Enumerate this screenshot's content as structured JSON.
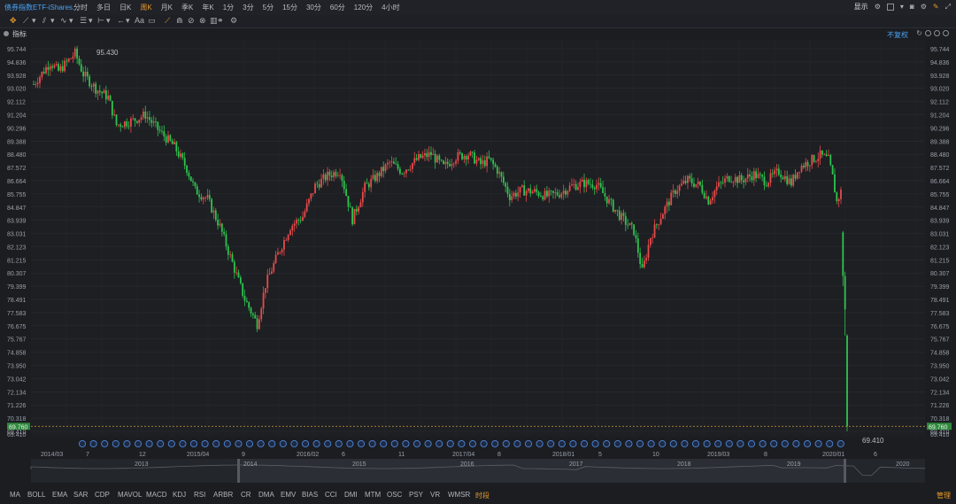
{
  "header": {
    "title": "债券指数ETF-iShares...",
    "periods": [
      "分时",
      "多日",
      "日K",
      "周K",
      "月K",
      "季K",
      "年K",
      "1分",
      "3分",
      "5分",
      "15分",
      "30分",
      "60分",
      "120分",
      "4小时"
    ],
    "active_period": "周K",
    "display_label": "显示"
  },
  "indicator_header": {
    "label": "指标",
    "adjust_label": "不复权"
  },
  "chart_data": {
    "type": "candlestick",
    "y_ticks": [
      95.744,
      94.836,
      93.928,
      93.02,
      92.112,
      91.204,
      90.296,
      89.388,
      88.48,
      87.572,
      86.664,
      85.755,
      84.847,
      83.939,
      83.031,
      82.123,
      81.215,
      80.307,
      79.399,
      78.491,
      77.583,
      76.675,
      75.767,
      74.858,
      73.95,
      73.042,
      72.134,
      71.226,
      70.318,
      69.41
    ],
    "ylim": [
      69.41,
      95.744
    ],
    "current_price": "69.760",
    "high_label": "95.430",
    "low_label": "69.410",
    "up_color": "#e84a4a",
    "down_color": "#2fc44e",
    "x_labels": [
      "2014/03",
      "7",
      "12",
      "2015/04",
      "9",
      "2016/02",
      "6",
      "11",
      "2017/04",
      "8",
      "2018/01",
      "5",
      "10",
      "2019/03",
      "8",
      "2020/01",
      "6"
    ],
    "overview_labels": [
      "2013",
      "2014",
      "2015",
      "2016",
      "2017",
      "2018",
      "2019",
      "2020"
    ],
    "anchors": [
      [
        0,
        93.3
      ],
      [
        8,
        94.8
      ],
      [
        12,
        94.2
      ],
      [
        18,
        95.1
      ],
      [
        20,
        95.43
      ],
      [
        24,
        94.0
      ],
      [
        30,
        93.0
      ],
      [
        36,
        92.4
      ],
      [
        40,
        90.5
      ],
      [
        48,
        90.8
      ],
      [
        54,
        91.2
      ],
      [
        60,
        90.2
      ],
      [
        68,
        89.0
      ],
      [
        74,
        87.5
      ],
      [
        78,
        86.0
      ],
      [
        84,
        85.4
      ],
      [
        90,
        83.5
      ],
      [
        96,
        81.0
      ],
      [
        102,
        78.5
      ],
      [
        108,
        76.8
      ],
      [
        112,
        79.5
      ],
      [
        118,
        81.6
      ],
      [
        124,
        83.5
      ],
      [
        130,
        84.2
      ],
      [
        136,
        86.3
      ],
      [
        142,
        87.0
      ],
      [
        148,
        87.4
      ],
      [
        154,
        84.0
      ],
      [
        160,
        86.2
      ],
      [
        166,
        87.0
      ],
      [
        172,
        87.9
      ],
      [
        178,
        87.3
      ],
      [
        186,
        88.2
      ],
      [
        192,
        88.5
      ],
      [
        198,
        87.6
      ],
      [
        204,
        88.3
      ],
      [
        210,
        88.5
      ],
      [
        216,
        87.8
      ],
      [
        220,
        88.1
      ],
      [
        224,
        87.4
      ],
      [
        230,
        85.6
      ],
      [
        236,
        86.0
      ],
      [
        242,
        85.9
      ],
      [
        248,
        85.6
      ],
      [
        254,
        85.8
      ],
      [
        260,
        86.3
      ],
      [
        266,
        86.5
      ],
      [
        272,
        86.4
      ],
      [
        278,
        85.2
      ],
      [
        284,
        84.1
      ],
      [
        290,
        83.2
      ],
      [
        294,
        80.4
      ],
      [
        298,
        82.8
      ],
      [
        304,
        84.5
      ],
      [
        310,
        86.0
      ],
      [
        316,
        86.7
      ],
      [
        322,
        86.3
      ],
      [
        326,
        85.3
      ],
      [
        330,
        86.2
      ],
      [
        336,
        86.9
      ],
      [
        342,
        86.7
      ],
      [
        348,
        87.1
      ],
      [
        354,
        86.6
      ],
      [
        360,
        87.3
      ],
      [
        366,
        86.5
      ],
      [
        370,
        87.6
      ],
      [
        376,
        88.1
      ],
      [
        380,
        88.4
      ],
      [
        384,
        88.1
      ],
      [
        386,
        86.9
      ],
      [
        388,
        85.2
      ],
      [
        390,
        85.9
      ]
    ],
    "crash_candles": [
      {
        "o": 83.1,
        "h": 83.2,
        "l": 79.4,
        "c": 80.1
      },
      {
        "o": 80.1,
        "h": 80.4,
        "l": 76.0,
        "c": 77.8
      },
      {
        "o": 76.0,
        "h": 76.1,
        "l": 69.41,
        "c": 69.76
      }
    ]
  },
  "indicator_tabs": [
    "MA",
    "BOLL",
    "EMA",
    "SAR",
    "CDP",
    "MAVOL",
    "MACD",
    "KDJ",
    "RSI",
    "ARBR",
    "CR",
    "DMA",
    "EMV",
    "BIAS",
    "CCI",
    "DMI",
    "MTM",
    "OSC",
    "PSY",
    "VR",
    "WMSR",
    "时段"
  ],
  "active_tab": "时段",
  "manage_label": "管理"
}
